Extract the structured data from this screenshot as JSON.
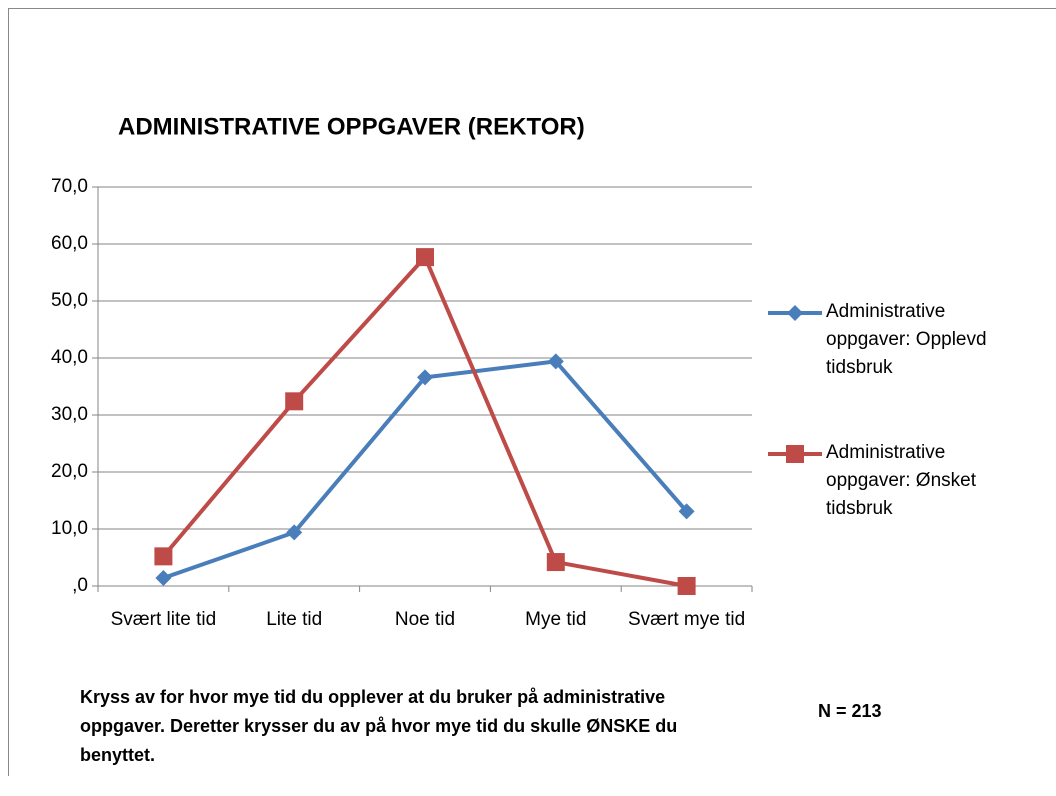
{
  "chart_data": {
    "type": "line",
    "title": "ADMINISTRATIVE OPPGAVER (REKTOR)",
    "categories": [
      "Svært lite tid",
      "Lite tid",
      "Noe tid",
      "Mye tid",
      "Svært mye tid"
    ],
    "series": [
      {
        "name": "Administrative oppgaver: Opplevd tidsbruk",
        "color": "#4a7ebb",
        "marker": "diamond",
        "values": [
          1.4,
          9.4,
          36.6,
          39.4,
          13.1
        ]
      },
      {
        "name": "Administrative oppgaver: Ønsket tidsbruk",
        "color": "#be4b48",
        "marker": "square",
        "values": [
          5.2,
          32.4,
          57.7,
          4.2,
          0
        ]
      }
    ],
    "ylim": [
      0,
      70
    ],
    "yticks": [
      {
        "value": 0,
        "label": ",0"
      },
      {
        "value": 10,
        "label": "10,0"
      },
      {
        "value": 20,
        "label": "20,0"
      },
      {
        "value": 30,
        "label": "30,0"
      },
      {
        "value": 40,
        "label": "40,0"
      },
      {
        "value": 50,
        "label": "50,0"
      },
      {
        "value": 60,
        "label": "60,0"
      },
      {
        "value": 70,
        "label": "70,0"
      }
    ],
    "grid": true,
    "legend": "right",
    "annotations": [
      "Kryss av for hvor mye tid du opplever at du bruker på administrative oppgaver. Deretter krysser du av på hvor mye tid du skulle ØNSKE du benyttet.",
      "N = 213"
    ]
  }
}
